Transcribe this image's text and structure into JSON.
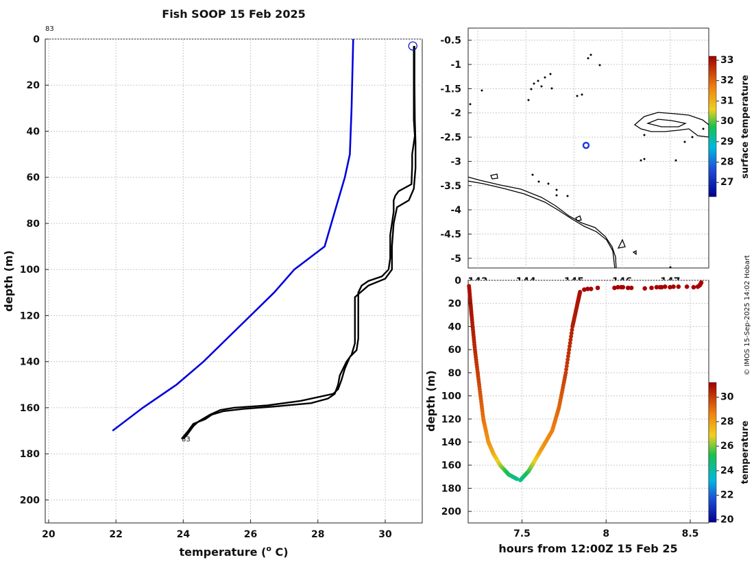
{
  "chart_data": [
    {
      "type": "line",
      "title": "Fish SOOP 15 Feb 2025",
      "xlabel": "temperature (",
      "xlabel_sup": "o",
      "xlabel_end": " C)",
      "ylabel": "depth (m)",
      "xlim": [
        19.9,
        31.1
      ],
      "ylim": [
        210,
        0
      ],
      "xticks": [
        20,
        22,
        24,
        26,
        28,
        30
      ],
      "yticks": [
        0,
        20,
        40,
        60,
        80,
        100,
        120,
        140,
        160,
        180,
        200
      ],
      "start_label": "83",
      "end_label": "83",
      "marker": {
        "x": 30.82,
        "y": 3,
        "color": "#0000cc"
      },
      "series": [
        {
          "name": "blue profile",
          "color": "#0000dd",
          "points": [
            [
              29.05,
              0
            ],
            [
              29.0,
              30
            ],
            [
              28.95,
              50
            ],
            [
              28.8,
              60
            ],
            [
              28.5,
              75
            ],
            [
              28.2,
              90
            ],
            [
              27.3,
              100
            ],
            [
              26.7,
              110
            ],
            [
              26.0,
              120
            ],
            [
              25.3,
              130
            ],
            [
              24.6,
              140
            ],
            [
              23.8,
              150
            ],
            [
              22.8,
              160
            ],
            [
              21.9,
              170
            ]
          ]
        },
        {
          "name": "downcast",
          "color": "#000000",
          "points": [
            [
              30.85,
              3
            ],
            [
              30.85,
              25
            ],
            [
              30.85,
              35
            ],
            [
              30.88,
              42
            ],
            [
              30.8,
              50
            ],
            [
              30.8,
              55
            ],
            [
              30.78,
              63
            ],
            [
              30.4,
              66
            ],
            [
              30.3,
              68
            ],
            [
              30.25,
              70
            ],
            [
              30.25,
              75
            ],
            [
              30.2,
              80
            ],
            [
              30.15,
              85
            ],
            [
              30.15,
              95
            ],
            [
              30.1,
              100
            ],
            [
              29.9,
              103
            ],
            [
              29.5,
              105
            ],
            [
              29.3,
              107
            ],
            [
              29.2,
              110
            ],
            [
              29.2,
              120
            ],
            [
              29.2,
              130
            ],
            [
              29.15,
              135
            ],
            [
              28.95,
              138
            ],
            [
              28.8,
              143
            ],
            [
              28.7,
              148
            ],
            [
              28.6,
              152
            ],
            [
              28.45,
              154
            ],
            [
              27.5,
              157
            ],
            [
              26.5,
              159
            ],
            [
              25.5,
              160
            ],
            [
              25.1,
              161
            ],
            [
              24.8,
              163
            ],
            [
              24.45,
              166
            ],
            [
              24.3,
              168
            ],
            [
              24.1,
              172
            ],
            [
              24.0,
              173.5
            ]
          ]
        },
        {
          "name": "upcast",
          "color": "#000000",
          "points": [
            [
              23.95,
              173.5
            ],
            [
              24.15,
              170
            ],
            [
              24.3,
              167
            ],
            [
              24.65,
              165
            ],
            [
              24.85,
              163
            ],
            [
              25.2,
              161.5
            ],
            [
              25.8,
              160.5
            ],
            [
              26.7,
              159.5
            ],
            [
              27.8,
              158
            ],
            [
              28.3,
              156
            ],
            [
              28.5,
              154
            ],
            [
              28.6,
              150
            ],
            [
              28.65,
              146
            ],
            [
              28.85,
              140
            ],
            [
              29.0,
              137
            ],
            [
              29.1,
              132
            ],
            [
              29.1,
              125
            ],
            [
              29.1,
              112
            ],
            [
              29.5,
              107
            ],
            [
              30.0,
              104
            ],
            [
              30.2,
              100
            ],
            [
              30.2,
              90
            ],
            [
              30.25,
              80
            ],
            [
              30.35,
              73
            ],
            [
              30.7,
              70
            ],
            [
              30.85,
              65
            ],
            [
              30.9,
              56
            ],
            [
              30.9,
              45
            ],
            [
              30.88,
              35
            ],
            [
              30.87,
              20
            ],
            [
              30.87,
              3
            ]
          ]
        }
      ]
    },
    {
      "type": "scatter",
      "name": "map",
      "xlim": [
        142.8,
        147.8
      ],
      "ylim": [
        -5.2,
        -0.25
      ],
      "xticks": [
        143,
        144,
        145,
        146,
        147
      ],
      "xtick_labels": [
        "143",
        "144",
        "145",
        "146",
        "147"
      ],
      "yticks": [
        -0.5,
        -1,
        -1.5,
        -2,
        -2.5,
        -3,
        -3.5,
        -4,
        -4.5,
        -5
      ],
      "ytick_labels": [
        "-0.5",
        "-1",
        "-1.5",
        "-2",
        "-2.5",
        "-3",
        "-3.5",
        "-4",
        "-4.5",
        "-5"
      ],
      "position_marker": {
        "lon": 145.25,
        "lat": -2.67,
        "color": "#1a3fd6"
      },
      "colorbar": {
        "label": "surface temperature",
        "min": 26.3,
        "max": 33.2,
        "ticks": [
          27,
          28,
          29,
          30,
          31,
          32,
          33
        ]
      }
    },
    {
      "type": "scatter",
      "name": "depth-time",
      "xlabel": "hours from 12:00Z 15 Feb 25",
      "ylabel": "depth (m)",
      "xlim": [
        7.18,
        8.61
      ],
      "ylim": [
        210,
        0
      ],
      "xticks": [
        7.5,
        8,
        8.5
      ],
      "xtick_labels": [
        "7.5",
        "8",
        "8.5"
      ],
      "yticks": [
        0,
        20,
        40,
        60,
        80,
        100,
        120,
        140,
        160,
        180,
        200
      ],
      "colorbar": {
        "label": "temperature",
        "min": 19.8,
        "max": 31.2,
        "ticks": [
          20,
          22,
          24,
          26,
          28,
          30
        ]
      },
      "down_path": [
        [
          7.185,
          5,
          30.9
        ],
        [
          7.2,
          30,
          30.8
        ],
        [
          7.22,
          60,
          30.4
        ],
        [
          7.245,
          90,
          29.8
        ],
        [
          7.27,
          120,
          29.0
        ],
        [
          7.3,
          140,
          28.3
        ],
        [
          7.33,
          150,
          27.8
        ],
        [
          7.37,
          160,
          26.5
        ],
        [
          7.42,
          168,
          25.0
        ],
        [
          7.47,
          172,
          24.5
        ]
      ],
      "up_path": [
        [
          7.49,
          173,
          24.3
        ],
        [
          7.54,
          165,
          25.5
        ],
        [
          7.58,
          155,
          27.0
        ],
        [
          7.62,
          145,
          28.2
        ],
        [
          7.68,
          130,
          28.7
        ],
        [
          7.72,
          110,
          29.2
        ],
        [
          7.76,
          80,
          30.0
        ],
        [
          7.8,
          40,
          30.6
        ],
        [
          7.83,
          20,
          30.8
        ],
        [
          7.845,
          10,
          30.9
        ]
      ],
      "surface_points": [
        [
          7.87,
          8
        ],
        [
          7.89,
          7.5
        ],
        [
          7.91,
          7.5
        ],
        [
          7.95,
          6.5
        ],
        [
          8.05,
          6.5
        ],
        [
          8.07,
          6
        ],
        [
          8.09,
          6
        ],
        [
          8.1,
          6
        ],
        [
          8.13,
          6.5
        ],
        [
          8.15,
          6.5
        ],
        [
          8.23,
          7
        ],
        [
          8.27,
          6.5
        ],
        [
          8.3,
          6
        ],
        [
          8.32,
          6
        ],
        [
          8.33,
          6
        ],
        [
          8.35,
          5.5
        ],
        [
          8.38,
          6
        ],
        [
          8.4,
          5.5
        ],
        [
          8.43,
          5.5
        ],
        [
          8.48,
          5.5
        ],
        [
          8.52,
          6
        ],
        [
          8.545,
          5.5
        ],
        [
          8.555,
          4.5
        ],
        [
          8.56,
          3.5
        ],
        [
          8.565,
          2
        ]
      ]
    }
  ],
  "credit": "© IMOS 15-Sep-2025 14:02 Hobart",
  "colors": {
    "hot": "#a80000",
    "mid": "#e07010",
    "warm": "#f0b020",
    "green": "#10b050"
  }
}
